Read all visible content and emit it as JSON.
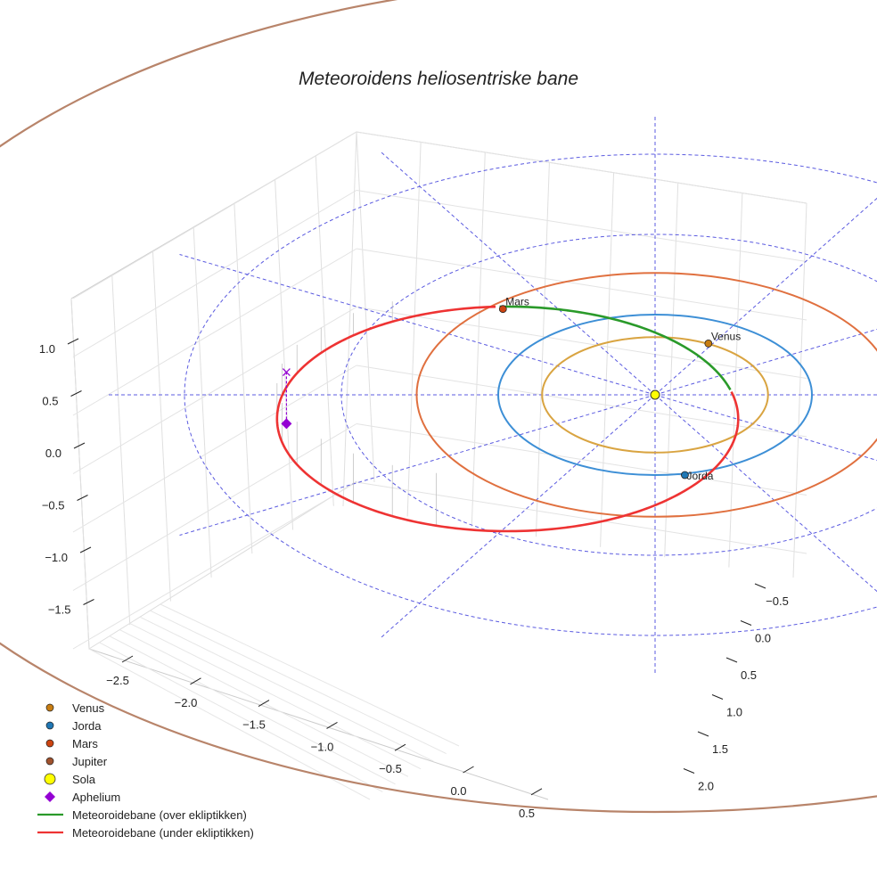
{
  "chart_data": {
    "type": "line",
    "title": "Meteoroidens heliosentriske bane",
    "xlabel": "",
    "ylabel": "",
    "zlabel": "",
    "x_ticks": [
      "−2.5",
      "−2.0",
      "−1.5",
      "−1.0",
      "−0.5",
      "0.0",
      "0.5"
    ],
    "y_ticks": [
      "−0.5",
      "0.0",
      "0.5",
      "1.0",
      "1.5",
      "2.0"
    ],
    "z_ticks": [
      "1.0",
      "0.5",
      "0.0",
      "−0.5",
      "−1.0",
      "−1.5"
    ],
    "reference_rings_au": [
      1,
      2,
      3
    ],
    "reference_spokes_deg": [
      0,
      30,
      60,
      90,
      120,
      150,
      180,
      210,
      240,
      270,
      300,
      330
    ],
    "orbits": [
      {
        "name": "Venus",
        "radius_au": 0.72,
        "color": "#d9a441"
      },
      {
        "name": "Jorda",
        "radius_au": 1.0,
        "color": "#3d8fd6"
      },
      {
        "name": "Mars",
        "radius_au": 1.52,
        "color": "#e0703f"
      },
      {
        "name": "Jupiter",
        "radius_au": 5.2,
        "color": "#b8846a"
      }
    ],
    "planets": [
      {
        "name": "Venus",
        "x": 0.34,
        "y": -0.64,
        "color": "#c87d12",
        "label": "Venus"
      },
      {
        "name": "Jorda",
        "x": 0.19,
        "y": 1.0,
        "color": "#1f77b4",
        "label": "Jorda"
      },
      {
        "name": "Mars",
        "x": -0.97,
        "y": -1.07,
        "color": "#cc4411",
        "label": "Mars"
      }
    ],
    "sun": {
      "x": 0,
      "y": 0,
      "color": "#ffff00"
    },
    "meteoroid": {
      "center_x": -0.94,
      "center_y": 0.3,
      "a": 1.47,
      "b": 1.4,
      "aphelion_x": -2.35,
      "aphelion_z": 0.49,
      "color_above": "#2a9a2a",
      "color_below": "#ee3333"
    },
    "legend": {
      "position": "lower-left",
      "items": [
        {
          "label": "Venus",
          "kind": "dot",
          "color": "#c87d12"
        },
        {
          "label": "Jorda",
          "kind": "dot",
          "color": "#1f77b4"
        },
        {
          "label": "Mars",
          "kind": "dot",
          "color": "#cc4411"
        },
        {
          "label": "Jupiter",
          "kind": "dot",
          "color": "#a0522d"
        },
        {
          "label": "Sola",
          "kind": "sun",
          "color": "#ffff00"
        },
        {
          "label": "Aphelium",
          "kind": "diamond",
          "color": "#9400d3"
        },
        {
          "label": "Meteoroidebane (over ekliptikken)",
          "kind": "line",
          "color": "#2a9a2a"
        },
        {
          "label": "Meteoroidebane (under ekliptikken)",
          "kind": "line",
          "color": "#ee3333"
        }
      ]
    }
  }
}
